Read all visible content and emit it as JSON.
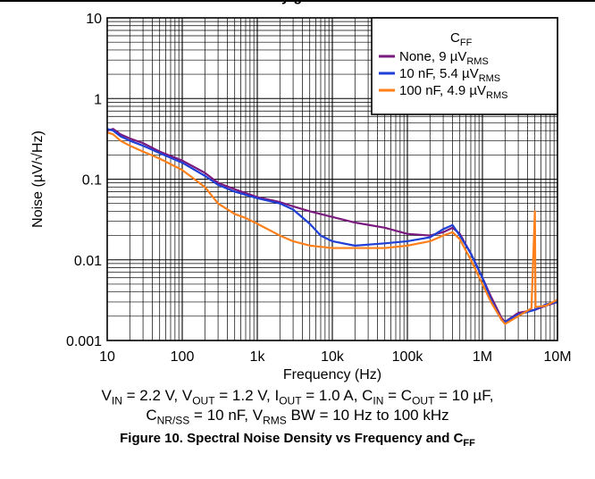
{
  "header_fragment": "y  g",
  "chart_data": {
    "type": "line",
    "title": "",
    "xlabel": "Frequency (Hz)",
    "ylabel": "Noise (µV/√Hz)",
    "xscale": "log",
    "yscale": "log",
    "xlim": [
      10,
      10000000
    ],
    "ylim": [
      0.001,
      10
    ],
    "grid": true,
    "x_tick_labels": [
      "10",
      "100",
      "1k",
      "10k",
      "100k",
      "1M",
      "10M"
    ],
    "y_tick_labels": [
      "0.001",
      "0.01",
      "0.1",
      "1",
      "10"
    ],
    "legend": {
      "placement": "top-right",
      "title": "C",
      "title_sub": "FF",
      "entries": [
        {
          "name": "None, 9 µV",
          "name_sub": "RMS"
        },
        {
          "name": "10 nF, 5.4 µV",
          "name_sub": "RMS"
        },
        {
          "name": "100 nF, 4.9  µV",
          "name_sub": "RMS"
        }
      ]
    },
    "series": [
      {
        "name": "None, 9 µVRMS",
        "color": "#7b1a7e",
        "points": [
          [
            10,
            0.4
          ],
          [
            12,
            0.42
          ],
          [
            15,
            0.36
          ],
          [
            20,
            0.32
          ],
          [
            30,
            0.28
          ],
          [
            50,
            0.22
          ],
          [
            100,
            0.17
          ],
          [
            200,
            0.12
          ],
          [
            300,
            0.09
          ],
          [
            500,
            0.075
          ],
          [
            1000,
            0.06
          ],
          [
            2000,
            0.052
          ],
          [
            3000,
            0.046
          ],
          [
            5000,
            0.04
          ],
          [
            10000,
            0.034
          ],
          [
            20000,
            0.029
          ],
          [
            50000,
            0.025
          ],
          [
            100000,
            0.021
          ],
          [
            200000,
            0.02
          ],
          [
            300000,
            0.022
          ],
          [
            400000,
            0.025
          ],
          [
            500000,
            0.021
          ],
          [
            700000,
            0.012
          ],
          [
            1000000,
            0.006
          ],
          [
            1300000,
            0.0035
          ],
          [
            1800000,
            0.0019
          ],
          [
            2000000,
            0.0017
          ],
          [
            3000000,
            0.0022
          ],
          [
            5000000,
            0.0024
          ],
          [
            7000000,
            0.0027
          ],
          [
            10000000,
            0.003
          ]
        ]
      },
      {
        "name": "10 nF, 5.4 µVRMS",
        "color": "#1f3fd6",
        "points": [
          [
            10,
            0.42
          ],
          [
            12,
            0.4
          ],
          [
            15,
            0.34
          ],
          [
            20,
            0.3
          ],
          [
            30,
            0.26
          ],
          [
            50,
            0.21
          ],
          [
            100,
            0.16
          ],
          [
            200,
            0.11
          ],
          [
            300,
            0.085
          ],
          [
            500,
            0.07
          ],
          [
            1000,
            0.058
          ],
          [
            2000,
            0.05
          ],
          [
            3000,
            0.042
          ],
          [
            5000,
            0.028
          ],
          [
            7000,
            0.02
          ],
          [
            10000,
            0.017
          ],
          [
            20000,
            0.015
          ],
          [
            50000,
            0.016
          ],
          [
            100000,
            0.017
          ],
          [
            200000,
            0.019
          ],
          [
            300000,
            0.024
          ],
          [
            400000,
            0.027
          ],
          [
            500000,
            0.02
          ],
          [
            700000,
            0.012
          ],
          [
            1000000,
            0.006
          ],
          [
            1300000,
            0.0032
          ],
          [
            1800000,
            0.0018
          ],
          [
            2000000,
            0.0017
          ],
          [
            3000000,
            0.0021
          ],
          [
            5000000,
            0.0024
          ],
          [
            7000000,
            0.0028
          ],
          [
            10000000,
            0.003
          ]
        ]
      },
      {
        "name": "100 nF, 4.9 µVRMS",
        "color": "#ff7f1a",
        "points": [
          [
            10,
            0.38
          ],
          [
            12,
            0.36
          ],
          [
            15,
            0.3
          ],
          [
            20,
            0.26
          ],
          [
            30,
            0.22
          ],
          [
            50,
            0.18
          ],
          [
            100,
            0.13
          ],
          [
            200,
            0.08
          ],
          [
            300,
            0.05
          ],
          [
            500,
            0.037
          ],
          [
            700,
            0.033
          ],
          [
            1000,
            0.028
          ],
          [
            2000,
            0.02
          ],
          [
            3000,
            0.017
          ],
          [
            5000,
            0.015
          ],
          [
            10000,
            0.014
          ],
          [
            20000,
            0.014
          ],
          [
            50000,
            0.014
          ],
          [
            100000,
            0.015
          ],
          [
            200000,
            0.017
          ],
          [
            300000,
            0.02
          ],
          [
            400000,
            0.022
          ],
          [
            500000,
            0.018
          ],
          [
            700000,
            0.01
          ],
          [
            1000000,
            0.005
          ],
          [
            1300000,
            0.003
          ],
          [
            1800000,
            0.0018
          ],
          [
            2000000,
            0.0016
          ],
          [
            3000000,
            0.002
          ],
          [
            4500000,
            0.0025
          ],
          [
            5000000,
            0.04
          ],
          [
            5100000,
            0.0026
          ],
          [
            7000000,
            0.0027
          ],
          [
            10000000,
            0.0032
          ]
        ]
      }
    ]
  },
  "conditions": {
    "line1": [
      {
        "t": "V"
      },
      {
        "s": "IN"
      },
      {
        "t": " = 2.2 V, V"
      },
      {
        "s": "OUT"
      },
      {
        "t": " = 1.2 V, I"
      },
      {
        "s": "OUT"
      },
      {
        "t": " = 1.0 A, C"
      },
      {
        "s": "IN"
      },
      {
        "t": " = C"
      },
      {
        "s": "OUT"
      },
      {
        "t": " = 10 µF,"
      }
    ],
    "line2": [
      {
        "t": "C"
      },
      {
        "s": "NR/SS"
      },
      {
        "t": " = 10 nF, V"
      },
      {
        "s": "RMS"
      },
      {
        "t": " BW = 10 Hz to 100 kHz"
      }
    ]
  },
  "caption": {
    "main": "Figure 10. Spectral Noise Density vs Frequency and C",
    "sub": "FF"
  }
}
